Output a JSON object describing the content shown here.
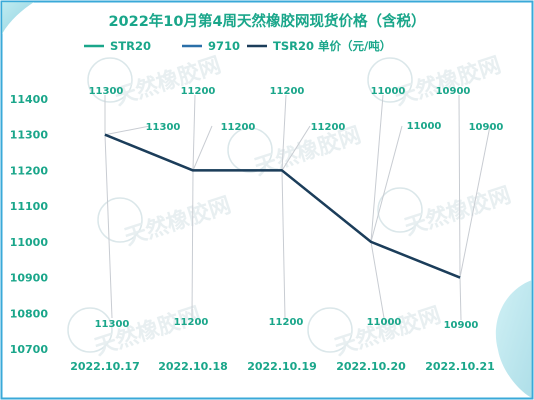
{
  "chart_data": {
    "type": "line",
    "title": "2022年10月第4周天然橡胶网现货价格（含税）",
    "legend_position": "top",
    "categories": [
      "2022.10.17",
      "2022.10.18",
      "2022.10.19",
      "2022.10.20",
      "2022.10.21"
    ],
    "series": [
      {
        "name": "STR20",
        "values": [
          11300,
          11200,
          11200,
          11000,
          10900
        ],
        "color": "#1aa68a"
      },
      {
        "name": "9710",
        "values": [
          11300,
          11200,
          11200,
          11000,
          10900
        ],
        "color": "#2a6fa8"
      },
      {
        "name": "TSR20 单价（元/吨）",
        "values": [
          11300,
          11200,
          11200,
          11000,
          10900
        ],
        "color": "#1c3d5a"
      }
    ],
    "xlabel": "",
    "ylabel": "",
    "ylim": [
      10700,
      11400
    ],
    "yticks": [
      10700,
      10800,
      10900,
      11000,
      11100,
      11200,
      11300,
      11400
    ],
    "grid": false,
    "value_labels": {
      "bottom": [
        "11300",
        "11200",
        "11200",
        "11000",
        "10900"
      ],
      "top": [
        "11300",
        "11200",
        "11200",
        "11000",
        "10900"
      ],
      "mid": [
        "11300",
        "11200",
        "11200",
        "11000",
        "10900"
      ]
    },
    "watermark_text": "天然橡胶网",
    "colors": {
      "text": "#1aa68a",
      "frame": "#3aa9d8",
      "line": "#1c3d5a",
      "leader": "#c8ccd2"
    }
  }
}
